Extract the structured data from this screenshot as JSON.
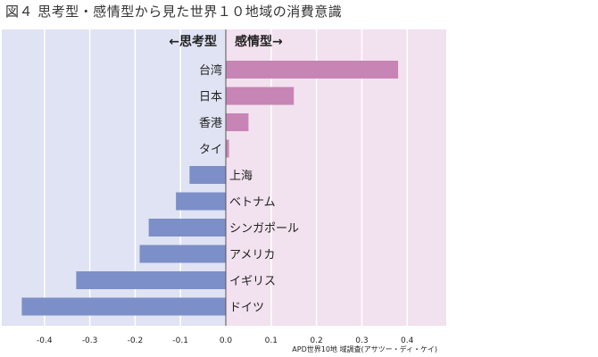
{
  "figure_title": "図４  思考型・感情型から見た世界１０地域の消費意識",
  "source": "APD世界10地 域調査(アサツー・ディ・ケイ)",
  "colors": {
    "left_bg": "#dfe3f3",
    "right_bg": "#f2e1ee",
    "positive_bar": "#c785b5",
    "negative_bar": "#7d8fc8",
    "grid": "#ffffff",
    "axis": "#555555"
  },
  "chart_data": {
    "type": "bar",
    "orientation": "horizontal",
    "title": "",
    "left_header": "←思考型",
    "right_header": "感情型→",
    "categories": [
      "台湾",
      "日本",
      "香港",
      "タイ",
      "上海",
      "ベトナム",
      "シンガポール",
      "アメリカ",
      "イギリス",
      "ドイツ"
    ],
    "values": [
      0.38,
      0.15,
      0.05,
      0.007,
      -0.08,
      -0.11,
      -0.17,
      -0.19,
      -0.33,
      -0.45
    ],
    "xlim": [
      -0.47,
      0.48
    ],
    "xticks": [
      -0.4,
      -0.3,
      -0.2,
      -0.1,
      0.0,
      0.1,
      0.2,
      0.3,
      0.4
    ],
    "xtick_labels": [
      "-0.4",
      "-0.3",
      "-0.2",
      "-0.1",
      "0.0",
      "0.1",
      "0.2",
      "0.3",
      "0.4"
    ],
    "xlabel": "",
    "ylabel": "",
    "grid": true,
    "legend": "none"
  }
}
